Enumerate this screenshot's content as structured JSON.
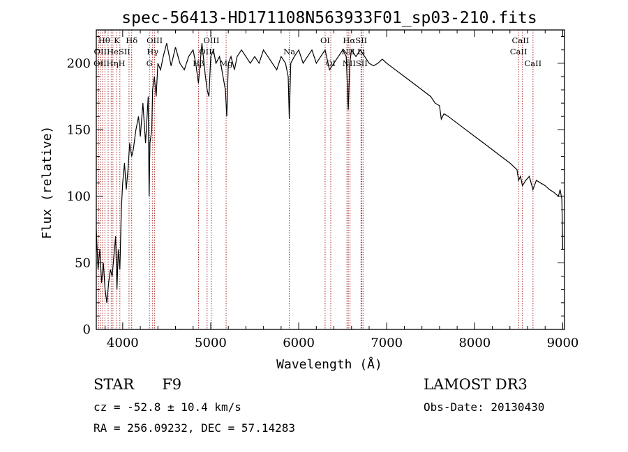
{
  "chart_data": {
    "type": "line",
    "title": "spec-56413-HD171108N563933F01_sp03-210.fits",
    "xlabel": "Wavelength (Å)",
    "ylabel": "Flux (relative)",
    "xlim": [
      3700,
      9020
    ],
    "ylim": [
      0,
      225
    ],
    "xticks": [
      4000,
      5000,
      6000,
      7000,
      8000,
      9000
    ],
    "yticks": [
      0,
      50,
      100,
      150,
      200
    ],
    "grid": false,
    "series": [
      {
        "name": "spectrum",
        "x": [
          3700,
          3720,
          3740,
          3760,
          3780,
          3800,
          3820,
          3840,
          3860,
          3880,
          3900,
          3920,
          3935,
          3950,
          3968,
          3985,
          4000,
          4020,
          4040,
          4060,
          4080,
          4102,
          4120,
          4150,
          4180,
          4200,
          4230,
          4260,
          4290,
          4300,
          4310,
          4330,
          4340,
          4360,
          4380,
          4400,
          4430,
          4460,
          4500,
          4550,
          4600,
          4650,
          4700,
          4750,
          4800,
          4830,
          4861,
          4880,
          4900,
          4940,
          4960,
          4980,
          5000,
          5030,
          5060,
          5100,
          5140,
          5167,
          5183,
          5200,
          5230,
          5270,
          5300,
          5350,
          5400,
          5450,
          5500,
          5550,
          5600,
          5650,
          5700,
          5750,
          5800,
          5850,
          5880,
          5893,
          5910,
          5950,
          6000,
          6050,
          6100,
          6150,
          6200,
          6250,
          6300,
          6350,
          6400,
          6450,
          6500,
          6540,
          6563,
          6580,
          6600,
          6650,
          6700,
          6750,
          6800,
          6850,
          6900,
          6950,
          7000,
          7100,
          7200,
          7300,
          7400,
          7500,
          7550,
          7600,
          7620,
          7650,
          7700,
          7800,
          7900,
          8000,
          8100,
          8200,
          8300,
          8400,
          8480,
          8498,
          8520,
          8542,
          8580,
          8620,
          8662,
          8700,
          8750,
          8800,
          8850,
          8900,
          8950,
          8970,
          8990,
          9000
        ],
        "y": [
          75,
          45,
          60,
          35,
          50,
          30,
          20,
          35,
          45,
          40,
          55,
          70,
          30,
          60,
          45,
          90,
          110,
          125,
          105,
          120,
          140,
          130,
          135,
          150,
          160,
          145,
          170,
          140,
          175,
          100,
          140,
          150,
          180,
          190,
          175,
          200,
          195,
          205,
          215,
          198,
          212,
          200,
          195,
          205,
          210,
          200,
          185,
          200,
          215,
          190,
          180,
          175,
          205,
          210,
          200,
          205,
          190,
          180,
          160,
          200,
          205,
          195,
          205,
          210,
          205,
          200,
          205,
          200,
          210,
          205,
          200,
          195,
          205,
          200,
          190,
          158,
          200,
          205,
          210,
          200,
          205,
          210,
          200,
          205,
          210,
          195,
          200,
          205,
          210,
          205,
          165,
          200,
          210,
          205,
          210,
          205,
          200,
          198,
          200,
          203,
          200,
          195,
          190,
          185,
          180,
          175,
          170,
          168,
          158,
          162,
          160,
          155,
          150,
          145,
          140,
          135,
          130,
          125,
          120,
          112,
          115,
          108,
          112,
          115,
          105,
          112,
          110,
          108,
          105,
          103,
          100,
          105,
          98,
          60
        ]
      }
    ],
    "line_markers": [
      {
        "wavelength": 3727,
        "label": "OII"
      },
      {
        "wavelength": 3750,
        "label": "OII"
      },
      {
        "wavelength": 3771,
        "label": "Hθ"
      },
      {
        "wavelength": 3798,
        "label": "Hθ"
      },
      {
        "wavelength": 3835,
        "label": "Hη"
      },
      {
        "wavelength": 3869,
        "label": "He"
      },
      {
        "wavelength": 3889,
        "label": "He"
      },
      {
        "wavelength": 3933,
        "label": "K"
      },
      {
        "wavelength": 3968,
        "label": "H"
      },
      {
        "wavelength": 4072,
        "label": "SII"
      },
      {
        "wavelength": 4102,
        "label": "Hδ"
      },
      {
        "wavelength": 4304,
        "label": "G"
      },
      {
        "wavelength": 4340,
        "label": "Hγ"
      },
      {
        "wavelength": 4363,
        "label": "OIII"
      },
      {
        "wavelength": 4861,
        "label": "Hβ"
      },
      {
        "wavelength": 4959,
        "label": "OIII"
      },
      {
        "wavelength": 5007,
        "label": "OIII"
      },
      {
        "wavelength": 5175,
        "label": "Mg"
      },
      {
        "wavelength": 5893,
        "label": "Na"
      },
      {
        "wavelength": 6300,
        "label": "OI"
      },
      {
        "wavelength": 6364,
        "label": "OI"
      },
      {
        "wavelength": 6548,
        "label": "NII"
      },
      {
        "wavelength": 6563,
        "label": "Hα"
      },
      {
        "wavelength": 6583,
        "label": "NII"
      },
      {
        "wavelength": 6708,
        "label": "Li"
      },
      {
        "wavelength": 6716,
        "label": "SII"
      },
      {
        "wavelength": 6731,
        "label": "SII"
      },
      {
        "wavelength": 8498,
        "label": "CaII"
      },
      {
        "wavelength": 8542,
        "label": "CaII"
      },
      {
        "wavelength": 8662,
        "label": "CaII"
      }
    ],
    "line_labels": [
      {
        "text": "Hθ",
        "row": 0,
        "wavelength": 3790
      },
      {
        "text": "K",
        "row": 0,
        "wavelength": 3933
      },
      {
        "text": "Hδ",
        "row": 0,
        "wavelength": 4102
      },
      {
        "text": "OIII",
        "row": 0,
        "wavelength": 4363
      },
      {
        "text": "OIII",
        "row": 0,
        "wavelength": 5007
      },
      {
        "text": "OI",
        "row": 0,
        "wavelength": 6300
      },
      {
        "text": "HαSII",
        "row": 0,
        "wavelength": 6640
      },
      {
        "text": "CaII",
        "row": 0,
        "wavelength": 8520
      },
      {
        "text": "OIIHeSII",
        "row": 1,
        "wavelength": 3880
      },
      {
        "text": "Hγ",
        "row": 1,
        "wavelength": 4340
      },
      {
        "text": "OIII",
        "row": 1,
        "wavelength": 4959
      },
      {
        "text": "Na",
        "row": 1,
        "wavelength": 5893
      },
      {
        "text": "NII Li",
        "row": 1,
        "wavelength": 6620
      },
      {
        "text": "CaII",
        "row": 1,
        "wavelength": 8498
      },
      {
        "text": "OIIHηH",
        "row": 2,
        "wavelength": 3850
      },
      {
        "text": "G",
        "row": 2,
        "wavelength": 4304
      },
      {
        "text": "Hβ",
        "row": 2,
        "wavelength": 4861
      },
      {
        "text": "Mg",
        "row": 2,
        "wavelength": 5175
      },
      {
        "text": "OI",
        "row": 2,
        "wavelength": 6364
      },
      {
        "text": "NIISII",
        "row": 2,
        "wavelength": 6640
      },
      {
        "text": "CaII",
        "row": 2,
        "wavelength": 8662
      }
    ]
  },
  "info": {
    "object_type": "STAR",
    "subclass": "F9",
    "survey": "LAMOST DR3",
    "redshift": "cz = -52.8 ± 10.4 km/s",
    "obs_date": "Obs-Date: 20130430",
    "coords": "RA = 256.09232, DEC =  57.14283"
  },
  "colors": {
    "marker": "#a52a2a",
    "spectrum": "#000000"
  }
}
